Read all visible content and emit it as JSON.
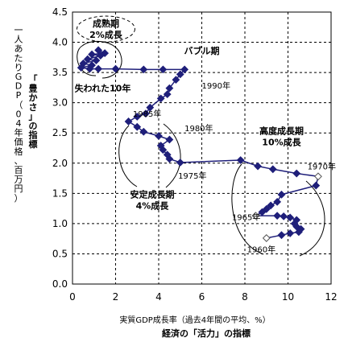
{
  "chart_data": {
    "type": "scatter",
    "xlabel": "実質GDP成長率（過去4年間の平均、%）",
    "xlabel2": "経済の「活力」の指標",
    "ylabel": "一人あたりGDP（04年価格、百万円）",
    "ylabel2": "「豊かさ」の指標",
    "xlim": [
      0,
      12
    ],
    "ylim": [
      0.0,
      4.5
    ],
    "xticks": [
      "0",
      "2",
      "4",
      "6",
      "8",
      "10",
      "12"
    ],
    "yticks": [
      "0.0",
      "0.5",
      "1.0",
      "1.5",
      "2.0",
      "2.5",
      "3.0",
      "3.5",
      "4.0",
      "4.5"
    ],
    "grid": true,
    "marker_color": "#1f1f7a",
    "series": [
      {
        "points": [
          [
            9.0,
            0.76
          ],
          [
            9.7,
            0.81
          ],
          [
            10.1,
            0.84
          ],
          [
            10.5,
            0.86
          ],
          [
            10.6,
            0.91
          ],
          [
            10.4,
            0.95
          ],
          [
            10.3,
            1.0
          ],
          [
            10.4,
            1.06
          ],
          [
            10.1,
            1.1
          ],
          [
            9.8,
            1.12
          ],
          [
            9.5,
            1.13
          ],
          [
            8.5,
            1.13
          ],
          [
            8.8,
            1.19
          ],
          [
            9.0,
            1.24
          ],
          [
            9.2,
            1.3
          ],
          [
            9.5,
            1.36
          ],
          [
            9.7,
            1.48
          ],
          [
            11.3,
            1.63
          ],
          [
            11.4,
            1.78
          ],
          [
            10.4,
            1.83
          ],
          [
            9.3,
            1.9
          ],
          [
            8.6,
            1.95
          ],
          [
            7.8,
            2.05
          ],
          [
            5.0,
            2.01
          ],
          [
            4.5,
            2.07
          ],
          [
            4.4,
            2.14
          ],
          [
            4.2,
            2.22
          ],
          [
            4.1,
            2.29
          ],
          [
            4.5,
            2.39
          ],
          [
            4.0,
            2.45
          ],
          [
            3.3,
            2.52
          ],
          [
            3.0,
            2.6
          ],
          [
            2.6,
            2.69
          ],
          [
            3.0,
            2.77
          ],
          [
            3.4,
            2.82
          ],
          [
            3.6,
            2.92
          ],
          [
            4.1,
            3.07
          ],
          [
            4.4,
            3.14
          ],
          [
            4.5,
            3.24
          ],
          [
            4.8,
            3.38
          ],
          [
            5.0,
            3.47
          ],
          [
            5.2,
            3.55
          ],
          [
            4.2,
            3.55
          ],
          [
            3.3,
            3.55
          ],
          [
            2.0,
            3.56
          ],
          [
            1.2,
            3.56
          ],
          [
            0.8,
            3.56
          ],
          [
            0.4,
            3.58
          ],
          [
            0.9,
            3.62
          ],
          [
            0.5,
            3.65
          ],
          [
            1.1,
            3.7
          ],
          [
            0.7,
            3.72
          ],
          [
            1.3,
            3.78
          ],
          [
            0.9,
            3.8
          ],
          [
            1.5,
            3.82
          ],
          [
            1.2,
            3.87
          ]
        ],
        "open_markers": [
          [
            9.0,
            0.76
          ],
          [
            8.5,
            1.13
          ],
          [
            11.4,
            1.78
          ],
          [
            5.2,
            2.01
          ],
          [
            3.6,
            2.77
          ],
          [
            5.2,
            3.47
          ]
        ]
      }
    ],
    "year_labels": [
      {
        "text": "1960年",
        "x": 8.1,
        "y": 0.58
      },
      {
        "text": "1965年",
        "x": 7.4,
        "y": 1.11
      },
      {
        "text": "1970年",
        "x": 10.9,
        "y": 1.95
      },
      {
        "text": "1975年",
        "x": 4.9,
        "y": 1.8
      },
      {
        "text": "1980年",
        "x": 5.2,
        "y": 2.58
      },
      {
        "text": "1985年",
        "x": 2.8,
        "y": 2.82
      },
      {
        "text": "1990年",
        "x": 6.0,
        "y": 3.29
      }
    ],
    "annotations": [
      {
        "lines": [
          "成熟期",
          "2%成長"
        ],
        "x": 1.55,
        "y": 4.22
      },
      {
        "lines": [
          "バブル期"
        ],
        "x": 6.0,
        "y": 3.86
      },
      {
        "lines": [
          "失われた10年"
        ],
        "x": 1.4,
        "y": 3.24
      },
      {
        "lines": [
          "高度成長期",
          "10%成長"
        ],
        "x": 9.7,
        "y": 2.44
      },
      {
        "lines": [
          "安定成長期",
          "4%成長"
        ],
        "x": 3.7,
        "y": 1.39
      }
    ]
  }
}
